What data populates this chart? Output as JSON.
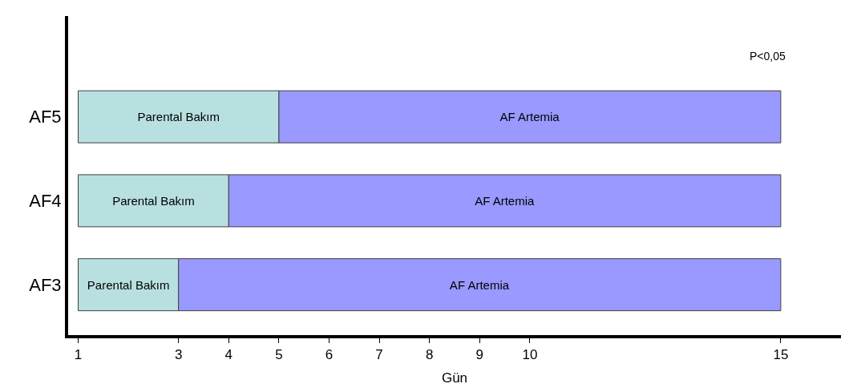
{
  "chart_data": {
    "type": "bar",
    "orientation": "horizontal",
    "xlabel": "Gün",
    "categories": [
      "AF5",
      "AF4",
      "AF3"
    ],
    "series": [
      {
        "name": "Parental Bakım",
        "color": "#b8e0e0",
        "base": [
          1,
          1,
          1
        ],
        "values": [
          4,
          3,
          2
        ]
      },
      {
        "name": "AF Artemia",
        "color": "#9999ff",
        "base": [
          5,
          4,
          3
        ],
        "values": [
          10,
          11,
          12
        ]
      }
    ],
    "xlim": [
      0.8,
      16.2
    ],
    "xticks": [
      1,
      3,
      4,
      5,
      6,
      7,
      8,
      9,
      10,
      15
    ],
    "annotations": [
      "P<0,05"
    ],
    "legend": false
  }
}
